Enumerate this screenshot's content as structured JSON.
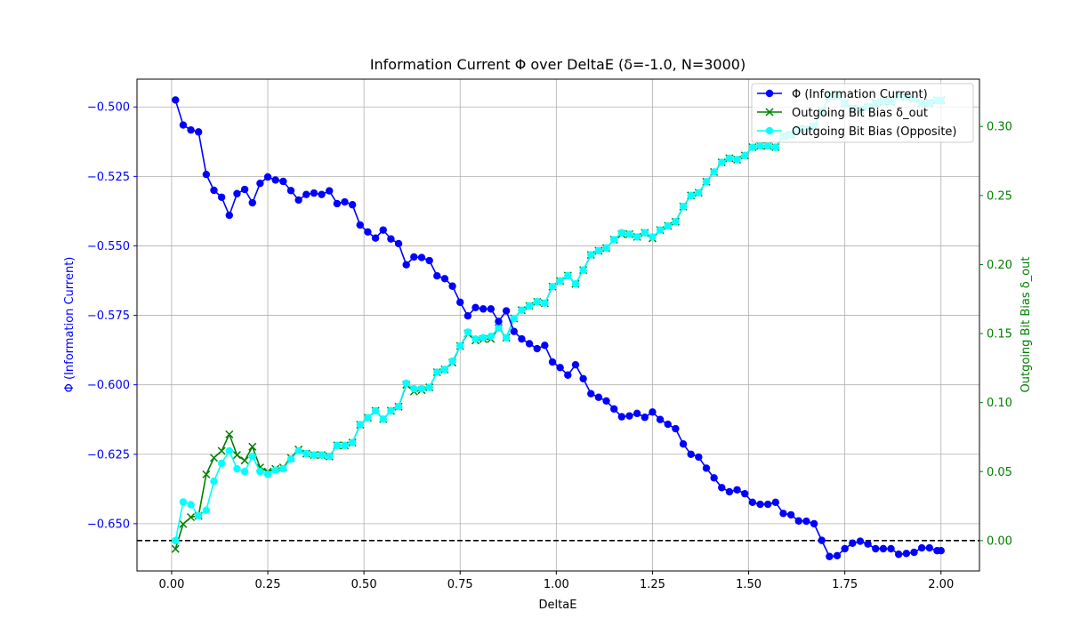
{
  "chart_data": {
    "type": "line",
    "title": "Information Current Φ over DeltaE (δ=-1.0, N=3000)",
    "xlabel": "DeltaE",
    "ylabel_left": "Φ (Information Current)",
    "ylabel_right": "Outgoing Bit Bias δ_out",
    "xlim": [
      -0.09,
      2.1
    ],
    "ylim_left": [
      -0.667,
      -0.49
    ],
    "ylim_right": [
      -0.022,
      0.3343
    ],
    "x_ticks": [
      0.0,
      0.25,
      0.5,
      0.75,
      1.0,
      1.25,
      1.5,
      1.75,
      2.0
    ],
    "x_tick_labels": [
      "0.00",
      "0.25",
      "0.50",
      "0.75",
      "1.00",
      "1.25",
      "1.50",
      "1.75",
      "2.00"
    ],
    "y_left_ticks": [
      -0.5,
      -0.525,
      -0.55,
      -0.575,
      -0.6,
      -0.625,
      -0.65
    ],
    "y_left_tick_labels": [
      "−0.500",
      "−0.525",
      "−0.550",
      "−0.575",
      "−0.600",
      "−0.625",
      "−0.650"
    ],
    "y_right_ticks": [
      0.0,
      0.05,
      0.1,
      0.15,
      0.2,
      0.25,
      0.3
    ],
    "y_right_tick_labels": [
      "0.00",
      "0.05",
      "0.10",
      "0.15",
      "0.20",
      "0.25",
      "0.30"
    ],
    "grid": true,
    "legend_position": "top-right",
    "reference_line": {
      "axis": "right",
      "y": 0.0,
      "style": "dashed",
      "color": "#000000"
    },
    "colors": {
      "phi": "#0000ff",
      "bias": "#008000",
      "opposite": "#00ffff"
    },
    "x": [
      0.01,
      0.03,
      0.05,
      0.07,
      0.09,
      0.11,
      0.13,
      0.15,
      0.17,
      0.19,
      0.21,
      0.23,
      0.25,
      0.27,
      0.29,
      0.31,
      0.33,
      0.35,
      0.37,
      0.39,
      0.41,
      0.43,
      0.45,
      0.47,
      0.49,
      0.51,
      0.53,
      0.55,
      0.57,
      0.59,
      0.61,
      0.63,
      0.65,
      0.67,
      0.69,
      0.71,
      0.73,
      0.75,
      0.77,
      0.79,
      0.81,
      0.83,
      0.85,
      0.87,
      0.89,
      0.91,
      0.93,
      0.95,
      0.97,
      0.99,
      1.01,
      1.03,
      1.05,
      1.07,
      1.09,
      1.11,
      1.13,
      1.15,
      1.17,
      1.19,
      1.21,
      1.23,
      1.25,
      1.27,
      1.29,
      1.31,
      1.33,
      1.35,
      1.37,
      1.39,
      1.41,
      1.43,
      1.45,
      1.47,
      1.49,
      1.51,
      1.53,
      1.55,
      1.57,
      1.59,
      1.61,
      1.63,
      1.65,
      1.67,
      1.69,
      1.71,
      1.73,
      1.75,
      1.77,
      1.79,
      1.81,
      1.83,
      1.85,
      1.87,
      1.89,
      1.91,
      1.93,
      1.95,
      1.97,
      1.99,
      2.0
    ],
    "series": [
      {
        "name": "Φ (Information Current)",
        "axis": "left",
        "marker": "circle",
        "color": "#0000ff",
        "values": [
          -0.4975,
          -0.5065,
          -0.5083,
          -0.509,
          -0.5243,
          -0.53,
          -0.5325,
          -0.539,
          -0.5312,
          -0.5297,
          -0.5345,
          -0.5275,
          -0.5252,
          -0.5263,
          -0.5268,
          -0.5301,
          -0.5335,
          -0.5315,
          -0.531,
          -0.5315,
          -0.5302,
          -0.5348,
          -0.5342,
          -0.5352,
          -0.5425,
          -0.545,
          -0.5472,
          -0.5443,
          -0.5475,
          -0.5492,
          -0.5568,
          -0.554,
          -0.5542,
          -0.5553,
          -0.5608,
          -0.5618,
          -0.5645,
          -0.5703,
          -0.5752,
          -0.5722,
          -0.5727,
          -0.5727,
          -0.5772,
          -0.5734,
          -0.5808,
          -0.5835,
          -0.5852,
          -0.587,
          -0.5858,
          -0.5918,
          -0.5938,
          -0.5965,
          -0.5928,
          -0.5978,
          -0.6032,
          -0.6045,
          -0.6058,
          -0.6087,
          -0.6115,
          -0.6112,
          -0.6103,
          -0.6117,
          -0.6098,
          -0.6125,
          -0.6142,
          -0.6158,
          -0.6213,
          -0.625,
          -0.626,
          -0.63,
          -0.6335,
          -0.637,
          -0.6385,
          -0.6378,
          -0.6392,
          -0.6423,
          -0.643,
          -0.643,
          -0.6423,
          -0.6463,
          -0.6468,
          -0.649,
          -0.6491,
          -0.65,
          -0.656,
          -0.6618,
          -0.6615,
          -0.659,
          -0.657,
          -0.6563,
          -0.6573,
          -0.659,
          -0.659,
          -0.659,
          -0.661,
          -0.6607,
          -0.6603,
          -0.6587,
          -0.6587,
          -0.6597,
          -0.6597
        ]
      },
      {
        "name": "Outgoing Bit Bias δ_out",
        "axis": "right",
        "marker": "x",
        "color": "#008000",
        "values": [
          -0.006,
          0.012,
          0.017,
          0.018,
          0.048,
          0.06,
          0.065,
          0.077,
          0.062,
          0.058,
          0.068,
          0.053,
          0.05,
          0.052,
          0.053,
          0.06,
          0.066,
          0.063,
          0.062,
          0.062,
          0.061,
          0.069,
          0.069,
          0.071,
          0.084,
          0.089,
          0.094,
          0.088,
          0.094,
          0.097,
          0.113,
          0.108,
          0.109,
          0.111,
          0.122,
          0.124,
          0.129,
          0.141,
          0.15,
          0.145,
          0.146,
          0.146,
          0.154,
          0.147,
          0.161,
          0.167,
          0.17,
          0.173,
          0.172,
          0.184,
          0.188,
          0.192,
          0.186,
          0.196,
          0.207,
          0.21,
          0.212,
          0.218,
          0.222,
          0.222,
          0.22,
          0.223,
          0.219,
          0.225,
          0.228,
          0.231,
          0.242,
          0.25,
          0.252,
          0.26,
          0.267,
          0.274,
          0.277,
          0.276,
          0.279,
          0.285,
          0.286,
          0.286,
          0.285,
          0.293,
          0.294,
          0.298,
          0.298,
          0.3,
          0.311,
          0.322,
          0.322,
          0.317,
          0.313,
          0.312,
          0.314,
          0.317,
          0.318,
          0.318,
          0.322,
          0.321,
          0.32,
          0.317,
          0.317,
          0.319,
          0.319
        ]
      },
      {
        "name": "Outgoing Bit Bias (Opposite)",
        "axis": "right",
        "marker": "circle",
        "color": "#00ffff",
        "values": [
          0.0,
          0.028,
          0.026,
          0.018,
          0.022,
          0.043,
          0.056,
          0.065,
          0.052,
          0.05,
          0.061,
          0.05,
          0.048,
          0.051,
          0.052,
          0.059,
          0.065,
          0.063,
          0.062,
          0.062,
          0.061,
          0.069,
          0.069,
          0.071,
          0.084,
          0.089,
          0.094,
          0.088,
          0.094,
          0.097,
          0.114,
          0.11,
          0.11,
          0.111,
          0.122,
          0.124,
          0.13,
          0.141,
          0.151,
          0.146,
          0.147,
          0.148,
          0.154,
          0.147,
          0.161,
          0.167,
          0.17,
          0.173,
          0.172,
          0.184,
          0.188,
          0.192,
          0.186,
          0.196,
          0.207,
          0.21,
          0.212,
          0.218,
          0.223,
          0.222,
          0.22,
          0.223,
          0.22,
          0.225,
          0.228,
          0.231,
          0.242,
          0.25,
          0.252,
          0.26,
          0.267,
          0.274,
          0.277,
          0.276,
          0.279,
          0.285,
          0.286,
          0.286,
          0.285,
          0.293,
          0.294,
          0.298,
          0.298,
          0.3,
          0.311,
          0.322,
          0.322,
          0.317,
          0.313,
          0.312,
          0.314,
          0.317,
          0.318,
          0.318,
          0.322,
          0.321,
          0.32,
          0.317,
          0.317,
          0.319,
          0.319
        ]
      }
    ]
  }
}
